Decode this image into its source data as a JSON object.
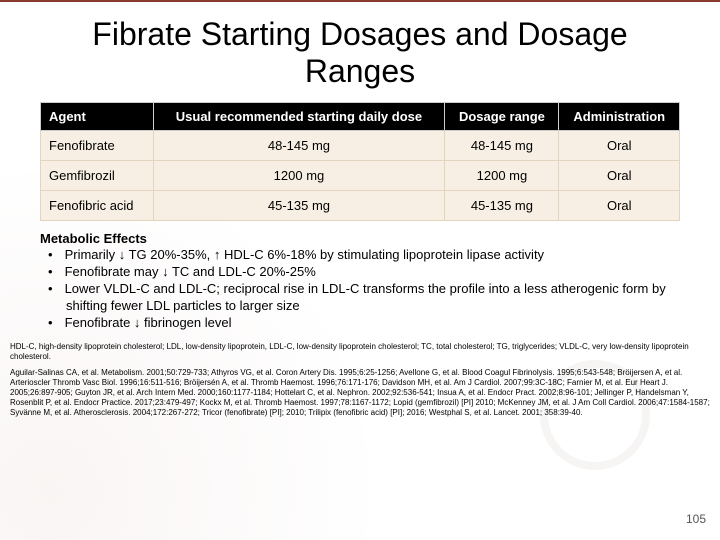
{
  "title": "Fibrate Starting Dosages and Dosage Ranges",
  "table": {
    "headers": {
      "c0": "Agent",
      "c1": "Usual recommended starting daily dose",
      "c2": "Dosage range",
      "c3": "Administration"
    },
    "rows": [
      {
        "c0": "Fenofibrate",
        "c1": "48-145 mg",
        "c2": "48-145 mg",
        "c3": "Oral"
      },
      {
        "c0": "Gemfibrozil",
        "c1": "1200 mg",
        "c2": "1200 mg",
        "c3": "Oral"
      },
      {
        "c0": "Fenofibric acid",
        "c1": "45-135 mg",
        "c2": "45-135 mg",
        "c3": "Oral"
      }
    ],
    "header_bg": "#000000",
    "header_fg": "#ffffff",
    "row_bg": "#f7efe4",
    "border_color": "#e2d4bd",
    "font_size": 13
  },
  "effects": {
    "heading": "Metabolic Effects",
    "bullets": [
      "Primarily ↓ TG 20%-35%, ↑ HDL-C 6%-18% by stimulating lipoprotein lipase activity",
      "Fenofibrate may ↓ TC and LDL-C 20%-25%",
      "Lower VLDL-C and LDL-C; reciprocal rise in LDL-C transforms the profile into a less atherogenic form by shifting fewer LDL particles to larger size",
      "Fenofibrate ↓ fibrinogen level"
    ]
  },
  "footnotes": {
    "abbrev": "HDL-C, high-density lipoprotein cholesterol; LDL, low-density lipoprotein, LDL-C, low-density lipoprotein cholesterol; TC, total cholesterol; TG, triglycerides; VLDL-C, very low-density lipoprotein cholesterol.",
    "refs": "Aguilar-Salinas CA, et al. Metabolism. 2001;50:729-733; Athyros VG, et al. Coron Artery Dis. 1995;6:25-1256; Avellone G, et al. Blood Coagul Fibrinolysis. 1995;6:543-548; Bröijersen A, et al. Arterioscler Thromb Vasc Biol. 1996;16:511-516; Bröijersén A, et al. Thromb Haemost. 1996;76:171-176; Davidson MH, et al. Am J Cardiol. 2007;99:3C-18C; Farnier M, et al. Eur Heart J. 2005;26:897-905; Guyton JR, et al. Arch Intern Med. 2000;160:1177-1184; Hottelart C, et al. Nephron. 2002;92:536-541; Insua A, et al. Endocr Pract. 2002;8:96-101; Jellinger P, Handelsman Y, Rosenblit P, et al. Endocr Practice. 2017;23:479-497; Kockx M, et al. Thromb Haemost. 1997;78:1167-1172; Lopid (gemfibrozil) [PI] 2010; McKenney JM, et al. J Am Coll Cardiol. 2006;47:1584-1587; Syvänne M, et al. Atherosclerosis. 2004;172:267-272; Tricor (fenofibrate) [PI]; 2010; Trilipix (fenofibric acid) [PI]; 2016; Westphal S, et al. Lancet. 2001; 358:39-40."
  },
  "page_number": "105",
  "colors": {
    "accent": "#8b3a2e",
    "background": "#ffffff"
  }
}
